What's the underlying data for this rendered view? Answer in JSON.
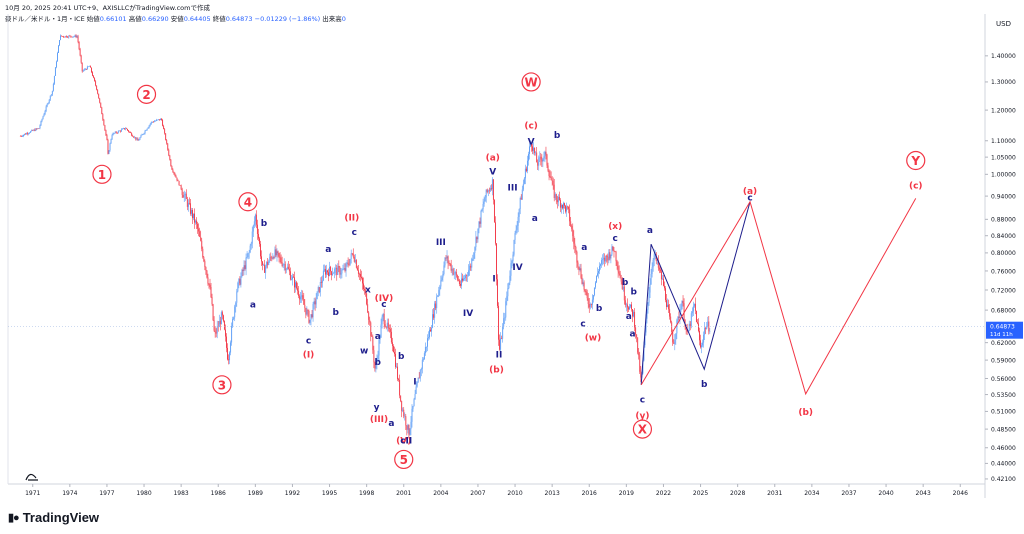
{
  "header": {
    "title": "10月 20, 2025 20:41 UTC+9、AXISLLCがTradingView.comで作成",
    "symbol": "豪ドル／米ドル・1月・ICE",
    "open_label": "始値",
    "open_value": "0.66101",
    "high_label": "高値",
    "high_value": "0.66290",
    "low_label": "安値",
    "low_value": "0.64405",
    "close_label": "終値",
    "close_value": "0.64873",
    "change_value": "−0.01229 (−1.86%)",
    "volume_label": "出来高",
    "volume_value": "0"
  },
  "price_axis": {
    "currency": "USD",
    "labels": [
      "1.40000",
      "1.30000",
      "1.20000",
      "1.10000",
      "1.05000",
      "1.00000",
      "0.94000",
      "0.88000",
      "0.84000",
      "0.80000",
      "0.76000",
      "0.72000",
      "0.68000",
      "0.62000",
      "0.59000",
      "0.56000",
      "0.53500",
      "0.51000",
      "0.48500",
      "0.46000",
      "0.44000",
      "0.42100"
    ],
    "current_price": "0.64873",
    "current_countdown": "11d 11h",
    "current_color": "#2962ff"
  },
  "time_axis": {
    "labels": [
      "1971",
      "1974",
      "1977",
      "1980",
      "1983",
      "1986",
      "1989",
      "1992",
      "1995",
      "1998",
      "2001",
      "2004",
      "2007",
      "2010",
      "2013",
      "2016",
      "2019",
      "2022",
      "2025",
      "2028",
      "2031",
      "2034",
      "2037",
      "2040",
      "2043",
      "2046"
    ]
  },
  "colors": {
    "up": "#5b9cf6",
    "down": "#f23645",
    "wave_red": "#f23645",
    "wave_navy": "#1e1e8c"
  },
  "logo": {
    "text": "TradingView",
    "icon": "tradingview-logo-icon"
  },
  "chart_data": {
    "type": "candlestick",
    "timeframe": "1M",
    "scale": "log",
    "x_range": [
      1969,
      2048
    ],
    "y_range": [
      0.415,
      1.55
    ],
    "last_close": 0.64873,
    "price_path": [
      [
        1970.0,
        1.115
      ],
      [
        1971.5,
        1.14
      ],
      [
        1972.6,
        1.27
      ],
      [
        1973.2,
        1.48
      ],
      [
        1974.6,
        1.48
      ],
      [
        1975.0,
        1.34
      ],
      [
        1975.6,
        1.36
      ],
      [
        1976.2,
        1.27
      ],
      [
        1977.0,
        1.1
      ],
      [
        1976.9,
        1.02
      ],
      [
        1977.4,
        1.12
      ],
      [
        1978.5,
        1.14
      ],
      [
        1979.5,
        1.1
      ],
      [
        1980.6,
        1.16
      ],
      [
        1981.4,
        1.17
      ],
      [
        1982.2,
        1.02
      ],
      [
        1983.0,
        0.96
      ],
      [
        1984.3,
        0.86
      ],
      [
        1985.4,
        0.71
      ],
      [
        1985.7,
        0.63
      ],
      [
        1986.3,
        0.67
      ],
      [
        1986.8,
        0.59
      ],
      [
        1987.5,
        0.72
      ],
      [
        1988.5,
        0.8
      ],
      [
        1989.0,
        0.89
      ],
      [
        1989.6,
        0.76
      ],
      [
        1990.5,
        0.8
      ],
      [
        1991.5,
        0.77
      ],
      [
        1992.6,
        0.71
      ],
      [
        1993.4,
        0.66
      ],
      [
        1994.6,
        0.76
      ],
      [
        1996.2,
        0.76
      ],
      [
        1996.9,
        0.8
      ],
      [
        1998.0,
        0.7
      ],
      [
        1998.7,
        0.57
      ],
      [
        1999.3,
        0.67
      ],
      [
        2000.1,
        0.62
      ],
      [
        2000.8,
        0.52
      ],
      [
        2001.4,
        0.48
      ],
      [
        2002.2,
        0.56
      ],
      [
        2003.2,
        0.65
      ],
      [
        2003.9,
        0.73
      ],
      [
        2004.4,
        0.79
      ],
      [
        2005.6,
        0.73
      ],
      [
        2006.4,
        0.77
      ],
      [
        2007.6,
        0.94
      ],
      [
        2008.2,
        0.98
      ],
      [
        2008.7,
        0.6
      ],
      [
        2009.1,
        0.66
      ],
      [
        2010.0,
        0.84
      ],
      [
        2010.8,
        1.0
      ],
      [
        2011.3,
        1.1
      ],
      [
        2011.8,
        1.03
      ],
      [
        2012.4,
        1.06
      ],
      [
        2013.2,
        0.94
      ],
      [
        2014.3,
        0.9
      ],
      [
        2014.9,
        0.8
      ],
      [
        2015.8,
        0.7
      ],
      [
        2016.1,
        0.69
      ],
      [
        2016.8,
        0.77
      ],
      [
        2018.0,
        0.81
      ],
      [
        2018.9,
        0.7
      ],
      [
        2019.6,
        0.67
      ],
      [
        2020.2,
        0.55
      ],
      [
        2020.7,
        0.69
      ],
      [
        2021.2,
        0.8
      ],
      [
        2022.0,
        0.73
      ],
      [
        2022.8,
        0.62
      ],
      [
        2023.5,
        0.7
      ],
      [
        2023.9,
        0.63
      ],
      [
        2024.5,
        0.69
      ],
      [
        2025.0,
        0.61
      ],
      [
        2025.4,
        0.65
      ],
      [
        2025.8,
        0.649
      ]
    ],
    "wave_labels": [
      {
        "text": "1",
        "x": 1976.6,
        "y": 1.0,
        "style": "circle-red"
      },
      {
        "text": "2",
        "x": 1980.2,
        "y": 1.255,
        "style": "circle-red"
      },
      {
        "text": "3",
        "x": 1986.3,
        "y": 0.55,
        "style": "circle-red"
      },
      {
        "text": "4",
        "x": 1988.4,
        "y": 0.925,
        "style": "circle-red"
      },
      {
        "text": "5",
        "x": 2001.0,
        "y": 0.445,
        "style": "circle-red"
      },
      {
        "text": "W",
        "x": 2011.3,
        "y": 1.3,
        "style": "circle-red"
      },
      {
        "text": "X",
        "x": 2020.3,
        "y": 0.485,
        "style": "circle-red"
      },
      {
        "text": "Y",
        "x": 2042.4,
        "y": 1.04,
        "style": "circle-red"
      },
      {
        "text": "(I)",
        "x": 1993.3,
        "y": 0.6,
        "style": "red"
      },
      {
        "text": "(II)",
        "x": 1996.8,
        "y": 0.886,
        "style": "red"
      },
      {
        "text": "(III)",
        "x": 1999.0,
        "y": 0.5,
        "style": "red"
      },
      {
        "text": "(IV)",
        "x": 1999.4,
        "y": 0.705,
        "style": "red"
      },
      {
        "text": "(V)",
        "x": 2001.0,
        "y": 0.47,
        "style": "red"
      },
      {
        "text": "(a)",
        "x": 2008.2,
        "y": 1.05,
        "style": "red"
      },
      {
        "text": "(b)",
        "x": 2008.5,
        "y": 0.575,
        "style": "red"
      },
      {
        "text": "(c)",
        "x": 2011.3,
        "y": 1.15,
        "style": "red"
      },
      {
        "text": "(w)",
        "x": 2016.3,
        "y": 0.63,
        "style": "red"
      },
      {
        "text": "(x)",
        "x": 2018.1,
        "y": 0.865,
        "style": "red"
      },
      {
        "text": "(y)",
        "x": 2020.3,
        "y": 0.505,
        "style": "red"
      },
      {
        "text": "(a)",
        "x": 2029.0,
        "y": 0.955,
        "style": "red"
      },
      {
        "text": "(b)",
        "x": 2033.5,
        "y": 0.51,
        "style": "red"
      },
      {
        "text": "(c)",
        "x": 2042.4,
        "y": 0.97,
        "style": "red"
      },
      {
        "text": "b",
        "x": 1989.7,
        "y": 0.872,
        "style": "navy"
      },
      {
        "text": "a",
        "x": 1988.8,
        "y": 0.692,
        "style": "navy"
      },
      {
        "text": "a",
        "x": 1994.9,
        "y": 0.81,
        "style": "navy"
      },
      {
        "text": "b",
        "x": 1995.5,
        "y": 0.677,
        "style": "navy"
      },
      {
        "text": "c",
        "x": 1993.3,
        "y": 0.625,
        "style": "navy"
      },
      {
        "text": "c",
        "x": 1997.0,
        "y": 0.85,
        "style": "navy"
      },
      {
        "text": "x",
        "x": 1998.1,
        "y": 0.722,
        "style": "navy"
      },
      {
        "text": "c",
        "x": 1999.4,
        "y": 0.693,
        "style": "navy"
      },
      {
        "text": "a",
        "x": 1998.9,
        "y": 0.633,
        "style": "navy"
      },
      {
        "text": "w",
        "x": 1997.8,
        "y": 0.607,
        "style": "navy"
      },
      {
        "text": "b",
        "x": 1998.9,
        "y": 0.588,
        "style": "navy"
      },
      {
        "text": "y",
        "x": 1998.8,
        "y": 0.517,
        "style": "navy"
      },
      {
        "text": "b",
        "x": 2000.8,
        "y": 0.598,
        "style": "navy"
      },
      {
        "text": "a",
        "x": 2000.0,
        "y": 0.494,
        "style": "navy"
      },
      {
        "text": "cII",
        "x": 2001.2,
        "y": 0.47,
        "style": "navy"
      },
      {
        "text": "I",
        "x": 2001.9,
        "y": 0.556,
        "style": "navy"
      },
      {
        "text": "III",
        "x": 2004.0,
        "y": 0.826,
        "style": "navy"
      },
      {
        "text": "IV",
        "x": 2006.2,
        "y": 0.675,
        "style": "navy"
      },
      {
        "text": "I",
        "x": 2008.3,
        "y": 0.745,
        "style": "navy"
      },
      {
        "text": "II",
        "x": 2008.7,
        "y": 0.6,
        "style": "navy"
      },
      {
        "text": "V",
        "x": 2008.2,
        "y": 1.01,
        "style": "navy"
      },
      {
        "text": "III",
        "x": 2009.8,
        "y": 0.965,
        "style": "navy"
      },
      {
        "text": "IV",
        "x": 2010.2,
        "y": 0.77,
        "style": "navy"
      },
      {
        "text": "V",
        "x": 2011.3,
        "y": 1.1,
        "style": "navy"
      },
      {
        "text": "a",
        "x": 2011.6,
        "y": 0.885,
        "style": "navy"
      },
      {
        "text": "b",
        "x": 2013.4,
        "y": 1.12,
        "style": "navy"
      },
      {
        "text": "a",
        "x": 2015.6,
        "y": 0.815,
        "style": "navy"
      },
      {
        "text": "c",
        "x": 2015.5,
        "y": 0.656,
        "style": "navy"
      },
      {
        "text": "b",
        "x": 2016.8,
        "y": 0.685,
        "style": "navy"
      },
      {
        "text": "c",
        "x": 2018.1,
        "y": 0.836,
        "style": "navy"
      },
      {
        "text": "b",
        "x": 2018.9,
        "y": 0.738,
        "style": "navy"
      },
      {
        "text": "a",
        "x": 2019.2,
        "y": 0.67,
        "style": "navy"
      },
      {
        "text": "b",
        "x": 2019.6,
        "y": 0.718,
        "style": "navy"
      },
      {
        "text": "a",
        "x": 2019.5,
        "y": 0.637,
        "style": "navy"
      },
      {
        "text": "a",
        "x": 2020.9,
        "y": 0.855,
        "style": "navy"
      },
      {
        "text": "c",
        "x": 2020.3,
        "y": 0.528,
        "style": "navy"
      },
      {
        "text": "b",
        "x": 2025.3,
        "y": 0.552,
        "style": "navy"
      },
      {
        "text": "c",
        "x": 2029.0,
        "y": 0.938,
        "style": "navy"
      }
    ],
    "projections": [
      {
        "color": "#1e1e8c",
        "points": [
          [
            2020.2,
            0.55
          ],
          [
            2021.0,
            0.82
          ],
          [
            2025.3,
            0.575
          ],
          [
            2029.0,
            0.925
          ]
        ]
      },
      {
        "color": "#f23645",
        "points": [
          [
            2020.2,
            0.55
          ],
          [
            2029.0,
            0.925
          ],
          [
            2033.5,
            0.536
          ],
          [
            2042.4,
            0.934
          ]
        ]
      }
    ]
  }
}
